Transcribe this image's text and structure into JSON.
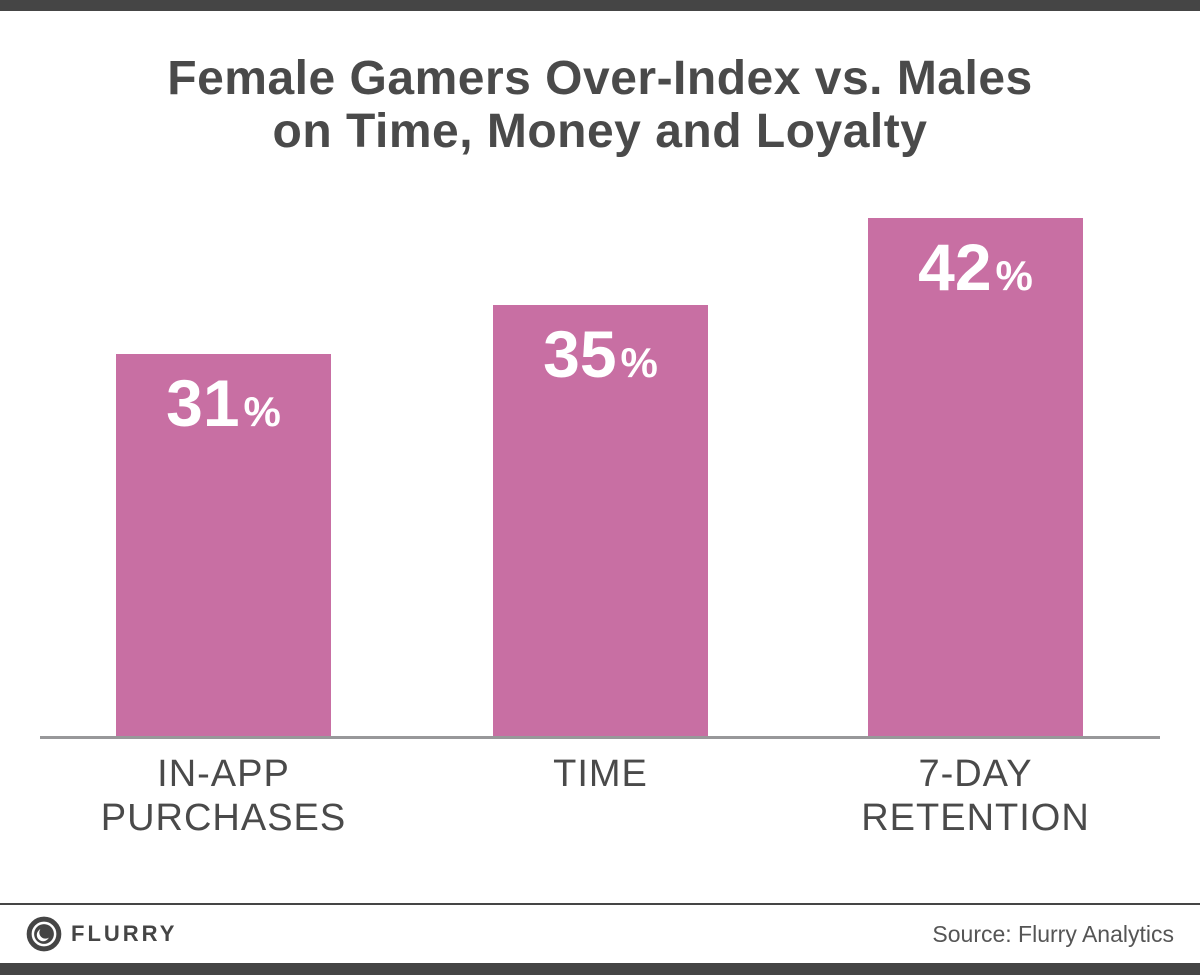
{
  "title": {
    "line1": "Female Gamers Over-Index vs. Males",
    "line2": "on Time, Money and Loyalty"
  },
  "chart_data": {
    "type": "bar",
    "title": "Female Gamers Over-Index vs. Males on Time, Money and Loyalty",
    "categories": [
      "IN-APP PURCHASES",
      "TIME",
      "7-DAY RETENTION"
    ],
    "values": [
      31,
      35,
      42
    ],
    "unit": "%",
    "xlabel": "",
    "ylabel": "",
    "ylim": [
      0,
      45
    ],
    "grid": false,
    "legend": "none",
    "bar_color": "#c86fa3",
    "value_label_color": "#ffffff",
    "value_label_position": "inside-top"
  },
  "colors": {
    "frame_bar": "#454545",
    "title_text": "#4a4a4a",
    "axis_line": "#98989a",
    "category_text": "#4a4a4a",
    "source_text": "#555555",
    "background": "#ffffff"
  },
  "footer": {
    "logo_icon": "flurry-lens-icon",
    "brand": "FLURRY",
    "source": "Source: Flurry Analytics"
  }
}
